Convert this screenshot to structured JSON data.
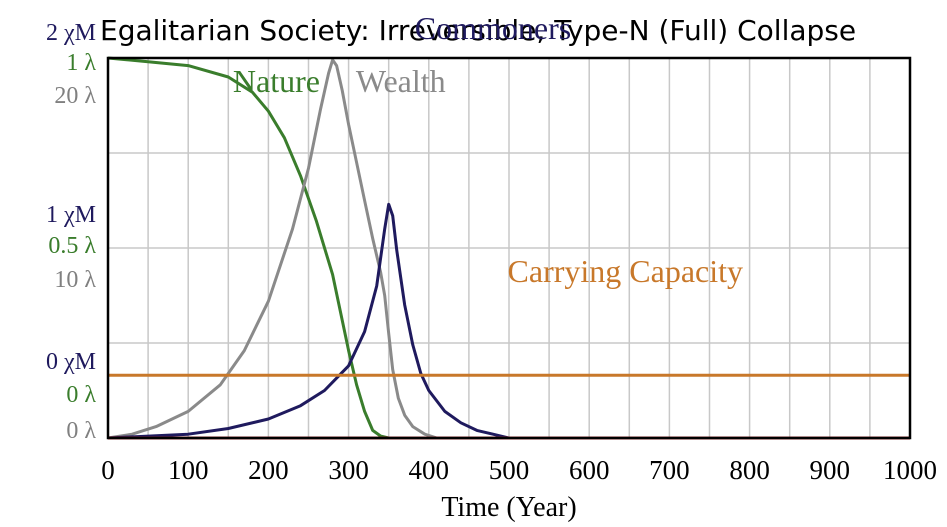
{
  "chart_data": {
    "type": "line",
    "title": "Egalitarian Society: Irreversible, Type-N (Full) Collapse",
    "xlabel": "Time (Year)",
    "xlim": [
      0,
      1000
    ],
    "x_ticks": [
      "0",
      "100",
      "200",
      "300",
      "400",
      "500",
      "600",
      "700",
      "800",
      "900",
      "1000"
    ],
    "y_axis_labels": {
      "top": [
        "2 χM",
        "1 λ",
        "20 λ"
      ],
      "middle": [
        "1 χM",
        "0.5 λ",
        "10 λ"
      ],
      "bottom": [
        "0 χM",
        "0 λ",
        "0 λ"
      ]
    },
    "grid": true,
    "colors": {
      "nature": "#3a7d2c",
      "wealth": "#8a8a8a",
      "commoners": "#1f1a5e",
      "carrying_capacity": "#c8782a",
      "elites": "#b02a2a",
      "tick_green": "#3a7d2c",
      "tick_gray": "#808080",
      "tick_navy": "#1f1a5e"
    },
    "series": [
      {
        "name": "Nature",
        "color": "#3a7d2c",
        "points": [
          [
            0,
            1.0
          ],
          [
            50,
            0.99
          ],
          [
            100,
            0.98
          ],
          [
            150,
            0.95
          ],
          [
            180,
            0.91
          ],
          [
            200,
            0.86
          ],
          [
            220,
            0.79
          ],
          [
            240,
            0.69
          ],
          [
            260,
            0.57
          ],
          [
            280,
            0.43
          ],
          [
            290,
            0.33
          ],
          [
            300,
            0.23
          ],
          [
            310,
            0.14
          ],
          [
            320,
            0.07
          ],
          [
            330,
            0.02
          ],
          [
            340,
            0.005
          ],
          [
            350,
            0.0
          ],
          [
            1000,
            0.0
          ]
        ]
      },
      {
        "name": "Wealth",
        "color": "#8a8a8a",
        "points": [
          [
            0,
            0
          ],
          [
            30,
            0.2
          ],
          [
            60,
            0.6
          ],
          [
            100,
            1.4
          ],
          [
            140,
            2.8
          ],
          [
            170,
            4.6
          ],
          [
            200,
            7.2
          ],
          [
            230,
            11.0
          ],
          [
            250,
            14.2
          ],
          [
            265,
            17.3
          ],
          [
            275,
            19.2
          ],
          [
            280,
            19.9
          ],
          [
            285,
            19.6
          ],
          [
            292,
            18.3
          ],
          [
            300,
            16.5
          ],
          [
            310,
            14.5
          ],
          [
            320,
            12.5
          ],
          [
            330,
            10.5
          ],
          [
            340,
            8.7
          ],
          [
            345,
            7.5
          ],
          [
            350,
            5.5
          ],
          [
            355,
            3.6
          ],
          [
            362,
            2.1
          ],
          [
            370,
            1.2
          ],
          [
            380,
            0.6
          ],
          [
            395,
            0.2
          ],
          [
            410,
            0.0
          ],
          [
            1000,
            0.0
          ]
        ]
      },
      {
        "name": "Commoners",
        "color": "#1f1a5e",
        "points": [
          [
            0,
            0
          ],
          [
            100,
            0.02
          ],
          [
            150,
            0.05
          ],
          [
            200,
            0.1
          ],
          [
            240,
            0.17
          ],
          [
            270,
            0.25
          ],
          [
            300,
            0.38
          ],
          [
            320,
            0.56
          ],
          [
            335,
            0.8
          ],
          [
            345,
            1.1
          ],
          [
            350,
            1.23
          ],
          [
            355,
            1.17
          ],
          [
            360,
            0.99
          ],
          [
            370,
            0.7
          ],
          [
            380,
            0.49
          ],
          [
            390,
            0.34
          ],
          [
            400,
            0.25
          ],
          [
            420,
            0.14
          ],
          [
            440,
            0.08
          ],
          [
            460,
            0.04
          ],
          [
            480,
            0.02
          ],
          [
            500,
            0.0
          ],
          [
            1000,
            0.0
          ]
        ]
      },
      {
        "name": "Carrying Capacity",
        "color": "#c8782a",
        "points": [
          [
            0,
            0.33
          ],
          [
            1000,
            0.33
          ]
        ]
      },
      {
        "color": "#b02a2a",
        "points": [
          [
            0,
            0
          ],
          [
            1000,
            0
          ]
        ]
      }
    ],
    "annotations": [
      {
        "text": "Nature",
        "x": 210,
        "y": 0.91,
        "color": "#3a7d2c"
      },
      {
        "text": "Wealth",
        "x": 365,
        "y": 0.91,
        "color": "#8a8a8a"
      },
      {
        "text": "Commoners",
        "x": 480,
        "y": 1.05,
        "color": "#1f1a5e"
      },
      {
        "text": "Carrying Capacity",
        "x": 645,
        "y": 0.41,
        "color": "#c8782a"
      }
    ]
  }
}
